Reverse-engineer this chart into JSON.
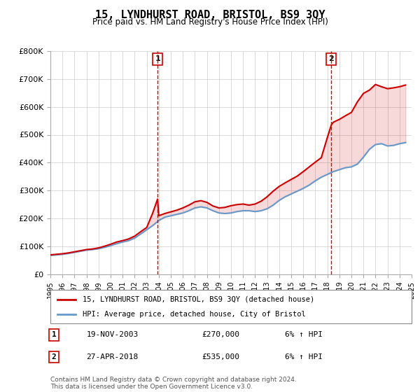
{
  "title": "15, LYNDHURST ROAD, BRISTOL, BS9 3QY",
  "subtitle": "Price paid vs. HM Land Registry's House Price Index (HPI)",
  "ylim": [
    0,
    800000
  ],
  "yticks": [
    0,
    100000,
    200000,
    300000,
    400000,
    500000,
    600000,
    700000,
    800000
  ],
  "ytick_labels": [
    "£0",
    "£100K",
    "£200K",
    "£300K",
    "£400K",
    "£500K",
    "£600K",
    "£700K",
    "£800K"
  ],
  "house_color": "#cc0000",
  "hpi_color": "#6699cc",
  "annotation_color": "#cc0000",
  "bg_color": "#ffffff",
  "grid_color": "#cccccc",
  "purchase1_year": 2003.9,
  "purchase1_price": 270000,
  "purchase1_label": "1",
  "purchase2_year": 2018.33,
  "purchase2_price": 535000,
  "purchase2_label": "2",
  "legend_house": "15, LYNDHURST ROAD, BRISTOL, BS9 3QY (detached house)",
  "legend_hpi": "HPI: Average price, detached house, City of Bristol",
  "note1_label": "1",
  "note1_date": "19-NOV-2003",
  "note1_price": "£270,000",
  "note1_hpi": "6% ↑ HPI",
  "note2_label": "2",
  "note2_date": "27-APR-2018",
  "note2_price": "£535,000",
  "note2_hpi": "6% ↑ HPI",
  "footer": "Contains HM Land Registry data © Crown copyright and database right 2024.\nThis data is licensed under the Open Government Licence v3.0.",
  "hpi_years": [
    1995,
    1995.5,
    1996,
    1996.5,
    1997,
    1997.5,
    1998,
    1998.5,
    1999,
    1999.5,
    2000,
    2000.5,
    2001,
    2001.5,
    2002,
    2002.5,
    2003,
    2003.5,
    2004,
    2004.5,
    2005,
    2005.5,
    2006,
    2006.5,
    2007,
    2007.5,
    2008,
    2008.5,
    2009,
    2009.5,
    2010,
    2010.5,
    2011,
    2011.5,
    2012,
    2012.5,
    2013,
    2013.5,
    2014,
    2014.5,
    2015,
    2015.5,
    2016,
    2016.5,
    2017,
    2017.5,
    2018,
    2018.5,
    2019,
    2019.5,
    2020,
    2020.5,
    2021,
    2021.5,
    2022,
    2022.5,
    2023,
    2023.5,
    2024,
    2024.5
  ],
  "hpi_values": [
    68000,
    70000,
    72000,
    75000,
    79000,
    83000,
    87000,
    89000,
    92000,
    97000,
    103000,
    110000,
    116000,
    121000,
    130000,
    145000,
    160000,
    175000,
    193000,
    205000,
    210000,
    215000,
    220000,
    228000,
    238000,
    242000,
    238000,
    228000,
    220000,
    218000,
    220000,
    225000,
    228000,
    228000,
    225000,
    228000,
    235000,
    248000,
    265000,
    278000,
    288000,
    298000,
    308000,
    320000,
    335000,
    348000,
    358000,
    368000,
    375000,
    382000,
    385000,
    395000,
    420000,
    448000,
    465000,
    468000,
    460000,
    462000,
    468000,
    472000
  ],
  "house_years": [
    1995,
    1995.5,
    1996,
    1996.5,
    1997,
    1997.5,
    1998,
    1998.5,
    1999,
    1999.5,
    2000,
    2000.5,
    2001,
    2001.5,
    2002,
    2002.5,
    2003,
    2003.5,
    2003.9,
    2004,
    2004.5,
    2005,
    2005.5,
    2006,
    2006.5,
    2007,
    2007.5,
    2008,
    2008.5,
    2009,
    2009.5,
    2010,
    2010.5,
    2011,
    2011.5,
    2012,
    2012.5,
    2013,
    2013.5,
    2014,
    2014.5,
    2015,
    2015.5,
    2016,
    2016.5,
    2017,
    2017.5,
    2018,
    2018.33,
    2018.5,
    2019,
    2019.5,
    2020,
    2020.5,
    2021,
    2021.5,
    2022,
    2022.5,
    2023,
    2023.5,
    2024,
    2024.5
  ],
  "house_values": [
    70000,
    72000,
    74000,
    77000,
    81000,
    85000,
    89000,
    91000,
    95000,
    101000,
    108000,
    116000,
    121000,
    127000,
    137000,
    153000,
    168000,
    220000,
    270000,
    210000,
    218000,
    224000,
    230000,
    238000,
    248000,
    260000,
    264000,
    258000,
    245000,
    238000,
    240000,
    246000,
    250000,
    252000,
    248000,
    252000,
    262000,
    278000,
    298000,
    315000,
    328000,
    340000,
    352000,
    368000,
    385000,
    402000,
    418000,
    490000,
    535000,
    545000,
    555000,
    568000,
    580000,
    618000,
    648000,
    660000,
    680000,
    672000,
    665000,
    668000,
    672000,
    678000
  ],
  "xtick_years": [
    1995,
    1996,
    1997,
    1998,
    1999,
    2000,
    2001,
    2002,
    2003,
    2004,
    2005,
    2006,
    2007,
    2008,
    2009,
    2010,
    2011,
    2012,
    2013,
    2014,
    2015,
    2016,
    2017,
    2018,
    2019,
    2020,
    2021,
    2022,
    2023,
    2024,
    2025
  ]
}
